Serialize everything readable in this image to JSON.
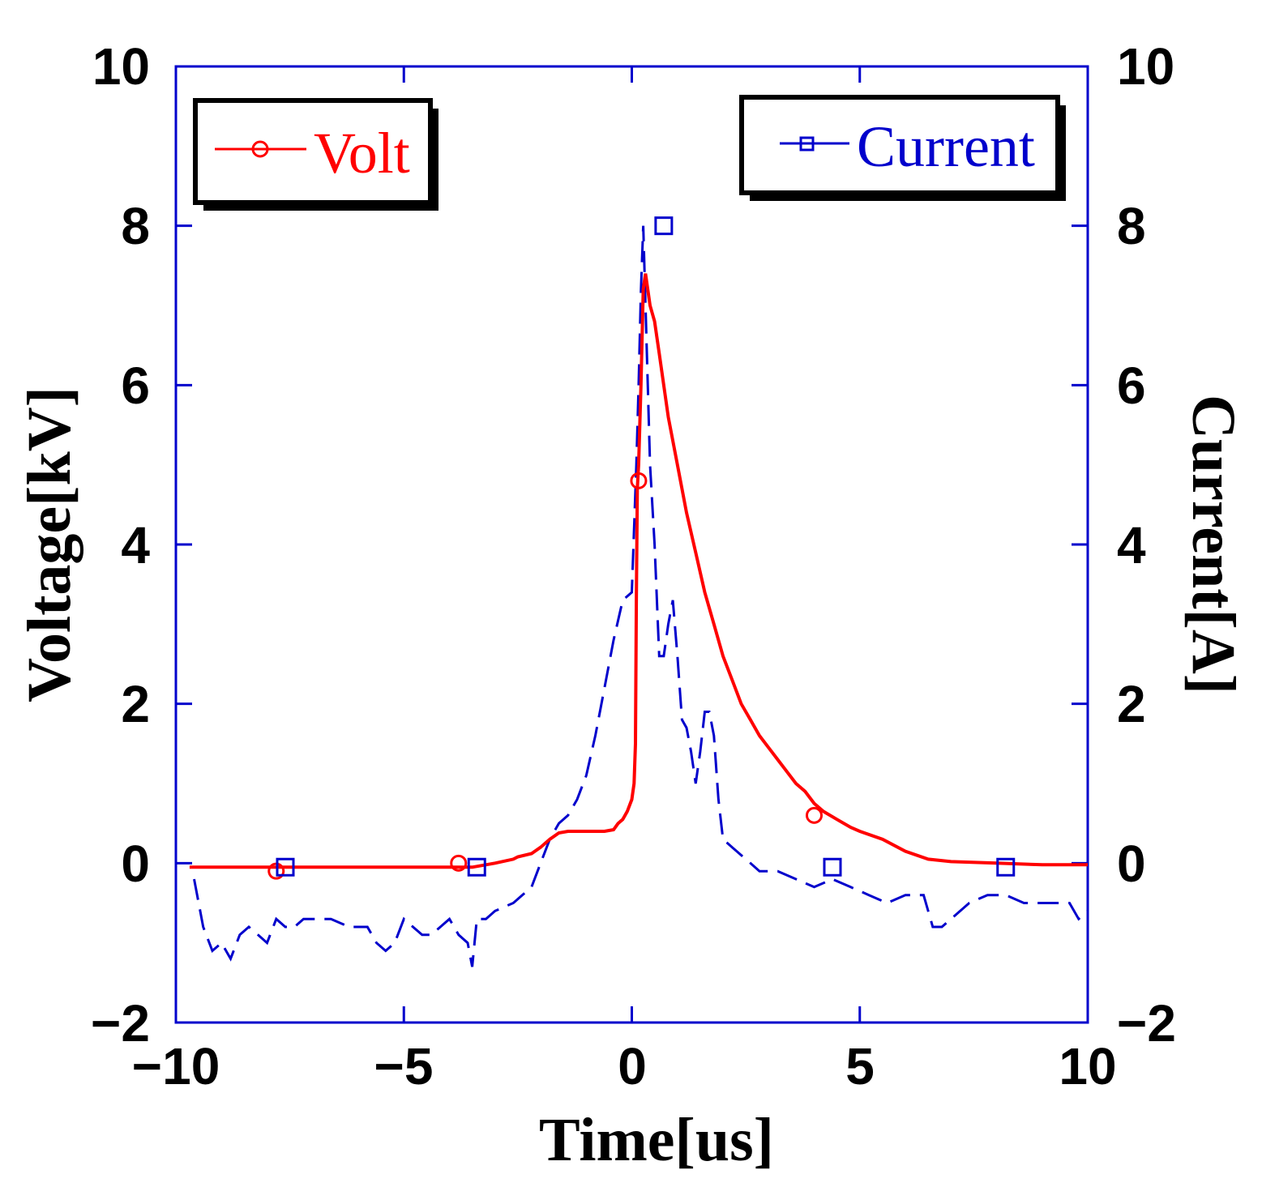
{
  "chart_data": {
    "type": "line",
    "title": "",
    "xlabel": "Time[us]",
    "ylabel": "Voltage[kV]",
    "y2label": "Current[A]",
    "xlim": [
      -10,
      10
    ],
    "ylim": [
      -2,
      10
    ],
    "y2lim": [
      -2,
      10
    ],
    "x_ticks": [
      -10,
      -5,
      0,
      5,
      10
    ],
    "x_tick_labels": [
      "−10",
      "−5",
      "0",
      "5",
      "10"
    ],
    "y_ticks": [
      -2,
      0,
      2,
      4,
      6,
      8,
      10
    ],
    "y_tick_labels": [
      "−2",
      "0",
      "2",
      "4",
      "6",
      "8",
      "10"
    ],
    "y2_tick_labels": [
      "−2",
      "0",
      "2",
      "4",
      "6",
      "8",
      "10"
    ],
    "grid": false,
    "colors": {
      "axes": "#0000cc",
      "volt": "#ff0000",
      "current": "#0000cc"
    },
    "series": [
      {
        "name": "Volt",
        "axis": "left",
        "style": "solid",
        "marker": "circle",
        "x": [
          -9.7,
          -9,
          -8,
          -7,
          -6,
          -5,
          -4,
          -3.5,
          -3,
          -2.6,
          -2.5,
          -2.2,
          -2.0,
          -1.8,
          -1.6,
          -1.4,
          -1.2,
          -1.0,
          -0.8,
          -0.6,
          -0.4,
          -0.3,
          -0.2,
          -0.1,
          0.0,
          0.05,
          0.08,
          0.1,
          0.12,
          0.15,
          0.2,
          0.25,
          0.3,
          0.35,
          0.4,
          0.5,
          0.6,
          0.8,
          1.0,
          1.2,
          1.4,
          1.6,
          1.8,
          2.0,
          2.2,
          2.4,
          2.6,
          2.8,
          3.0,
          3.2,
          3.4,
          3.6,
          3.8,
          4.0,
          4.2,
          4.5,
          4.8,
          5.0,
          5.5,
          6.0,
          6.5,
          7.0,
          8.0,
          9.0,
          10.0
        ],
        "y": [
          -0.05,
          -0.05,
          -0.05,
          -0.05,
          -0.05,
          -0.05,
          -0.05,
          -0.05,
          0.0,
          0.05,
          0.08,
          0.12,
          0.2,
          0.3,
          0.38,
          0.4,
          0.4,
          0.4,
          0.4,
          0.4,
          0.42,
          0.5,
          0.55,
          0.65,
          0.8,
          1.0,
          1.5,
          3.3,
          4.7,
          5.0,
          6.0,
          7.2,
          7.4,
          7.2,
          7.0,
          6.8,
          6.4,
          5.6,
          5.0,
          4.4,
          3.9,
          3.4,
          3.0,
          2.6,
          2.3,
          2.0,
          1.8,
          1.6,
          1.45,
          1.3,
          1.15,
          1.0,
          0.9,
          0.75,
          0.65,
          0.55,
          0.45,
          0.4,
          0.3,
          0.15,
          0.05,
          0.02,
          0.0,
          -0.02,
          -0.02
        ],
        "marker_x": [
          -7.8,
          -3.8,
          0.15,
          4.0
        ],
        "marker_y": [
          -0.1,
          0.0,
          4.8,
          0.6
        ]
      },
      {
        "name": "Current",
        "axis": "right",
        "style": "dashed",
        "marker": "square",
        "x": [
          -9.6,
          -9.4,
          -9.2,
          -9.0,
          -8.8,
          -8.6,
          -8.4,
          -8.2,
          -8.0,
          -7.8,
          -7.6,
          -7.4,
          -7.2,
          -7.0,
          -6.6,
          -6.2,
          -5.8,
          -5.6,
          -5.4,
          -5.2,
          -5.0,
          -4.8,
          -4.6,
          -4.4,
          -4.2,
          -4.0,
          -3.8,
          -3.6,
          -3.5,
          -3.4,
          -3.2,
          -3.0,
          -2.6,
          -2.2,
          -2.0,
          -1.8,
          -1.6,
          -1.4,
          -1.2,
          -1.0,
          -0.8,
          -0.6,
          -0.4,
          -0.2,
          0.0,
          0.1,
          0.15,
          0.2,
          0.25,
          0.3,
          0.35,
          0.4,
          0.5,
          0.6,
          0.7,
          0.8,
          0.9,
          1.0,
          1.1,
          1.2,
          1.3,
          1.4,
          1.5,
          1.6,
          1.7,
          1.8,
          1.9,
          2.0,
          2.2,
          2.4,
          2.6,
          2.8,
          3.0,
          3.2,
          3.6,
          4.0,
          4.4,
          4.8,
          5.2,
          5.6,
          6.0,
          6.4,
          6.6,
          6.8,
          7.0,
          7.4,
          7.8,
          8.2,
          8.6,
          9.0,
          9.4,
          9.6,
          9.8,
          10.0
        ],
        "y": [
          -0.2,
          -0.8,
          -1.1,
          -1.0,
          -1.2,
          -0.9,
          -0.8,
          -0.9,
          -1.0,
          -0.7,
          -0.8,
          -0.8,
          -0.7,
          -0.7,
          -0.7,
          -0.8,
          -0.8,
          -1.0,
          -1.1,
          -1.0,
          -0.7,
          -0.8,
          -0.9,
          -0.9,
          -0.8,
          -0.7,
          -0.9,
          -1.0,
          -1.3,
          -0.7,
          -0.7,
          -0.6,
          -0.5,
          -0.3,
          0.0,
          0.3,
          0.5,
          0.6,
          0.8,
          1.1,
          1.6,
          2.2,
          2.8,
          3.3,
          3.4,
          5.0,
          6.0,
          7.2,
          8.0,
          7.0,
          6.0,
          5.0,
          4.0,
          2.6,
          2.6,
          3.0,
          3.3,
          2.6,
          1.8,
          1.7,
          1.4,
          1.0,
          1.4,
          1.9,
          1.9,
          1.6,
          0.8,
          0.3,
          0.2,
          0.1,
          0.0,
          -0.1,
          -0.1,
          -0.1,
          -0.2,
          -0.3,
          -0.2,
          -0.3,
          -0.4,
          -0.5,
          -0.4,
          -0.4,
          -0.8,
          -0.8,
          -0.7,
          -0.5,
          -0.4,
          -0.4,
          -0.5,
          -0.5,
          -0.5,
          -0.5,
          -0.7,
          -0.6
        ],
        "marker_x": [
          -7.6,
          -3.4,
          0.7,
          4.4,
          8.2
        ],
        "marker_y": [
          -0.05,
          -0.05,
          8.0,
          -0.05,
          -0.05
        ]
      }
    ],
    "legend": [
      {
        "label": "Volt",
        "color": "#ff0000",
        "placement": "top-left",
        "marker": "circle"
      },
      {
        "label": "Current",
        "color": "#0000cc",
        "placement": "top-right",
        "marker": "square"
      }
    ]
  }
}
